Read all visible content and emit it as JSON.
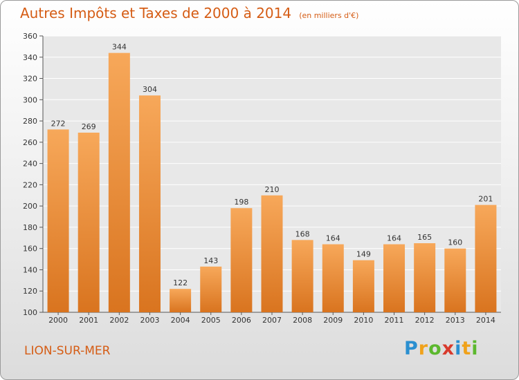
{
  "header": {
    "title": "Autres Impôts et Taxes de 2000 à 2014",
    "unit": "(en milliers d'€)"
  },
  "footer": {
    "commune": "LION-SUR-MER",
    "logo": "Proxiti"
  },
  "colors": {
    "accent": "#d55c14",
    "bar_light": "#f7a85a",
    "bar_dark": "#d9741f"
  },
  "chart_data": {
    "type": "bar",
    "title": "Autres Impôts et Taxes de 2000 à 2014",
    "subtitle": "(en milliers d'€)",
    "xlabel": "",
    "ylabel": "",
    "categories": [
      "2000",
      "2001",
      "2002",
      "2003",
      "2004",
      "2005",
      "2006",
      "2007",
      "2008",
      "2009",
      "2010",
      "2011",
      "2012",
      "2013",
      "2014"
    ],
    "values": [
      272,
      269,
      344,
      304,
      122,
      143,
      198,
      210,
      168,
      164,
      149,
      164,
      165,
      160,
      201
    ],
    "ylim": [
      100,
      360
    ],
    "yticks": [
      100,
      120,
      140,
      160,
      180,
      200,
      220,
      240,
      260,
      280,
      300,
      320,
      340,
      360
    ],
    "grid": true,
    "legend": "none"
  }
}
